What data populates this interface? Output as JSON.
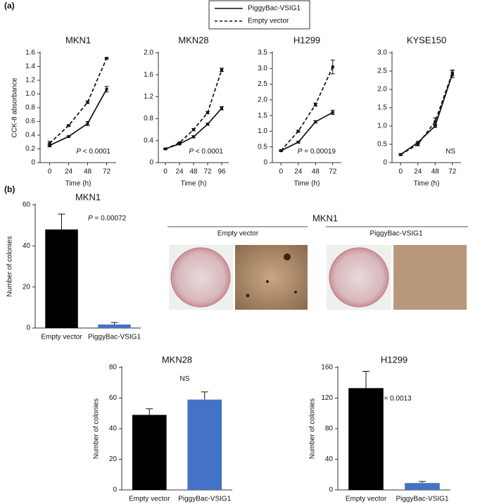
{
  "panel_labels": [
    "(a)",
    "(b)"
  ],
  "images_panel": {
    "title": "MKN1",
    "groups": [
      "Empty vector",
      "PiggyBac-VSIG1"
    ]
  },
  "chart_data": [
    {
      "type": "line",
      "title": "MKN1",
      "x_label": "Time (h)",
      "y_label": "CCK-8 absorbance",
      "x": [
        0,
        24,
        48,
        72
      ],
      "xlim": [
        -12,
        84
      ],
      "xticks": [
        0,
        24,
        48,
        72
      ],
      "ylim": [
        0,
        1.6
      ],
      "yticks": [
        0,
        0.2,
        0.4,
        0.6,
        0.8,
        {
          "value": 1,
          "label": "1.0"
        },
        1.2,
        1.4,
        1.6
      ],
      "series": [
        {
          "name": "PiggyBac-VSIG1",
          "color": "#111111",
          "style": "solid",
          "values": [
            0.25,
            0.38,
            0.57,
            1.07
          ],
          "errors": [
            0.02,
            0.01,
            0.03,
            0.04
          ]
        },
        {
          "name": "Empty vector",
          "color": "#111111",
          "style": "dashed",
          "values": [
            0.28,
            0.54,
            0.88,
            1.52
          ],
          "errors": [
            0.03,
            0.01,
            0.02,
            0.01
          ]
        }
      ],
      "annotation": {
        "italic": "P",
        "text": " < 0.0001"
      }
    },
    {
      "type": "line",
      "title": "MKN28",
      "x_label": "Time (h)",
      "x": [
        0,
        24,
        48,
        72,
        96
      ],
      "xlim": [
        -12,
        108
      ],
      "xticks": [
        0,
        24,
        48,
        72,
        96
      ],
      "ylim": [
        0,
        2
      ],
      "yticks": [
        0,
        0.4,
        0.8,
        1.2,
        1.6,
        {
          "value": 2,
          "label": "2.0"
        }
      ],
      "series": [
        {
          "color": "#111111",
          "style": "solid",
          "values": [
            0.25,
            0.34,
            0.47,
            0.7,
            0.99
          ],
          "errors": [
            0.01,
            0.01,
            0.02,
            0.02,
            0.03
          ]
        },
        {
          "color": "#111111",
          "style": "dashed",
          "values": [
            0.25,
            0.36,
            0.6,
            0.91,
            1.69
          ],
          "errors": [
            0.01,
            0.01,
            0.02,
            0.02,
            0.03
          ]
        }
      ],
      "annotation": {
        "italic": "P",
        "text": " < 0.0001"
      }
    },
    {
      "type": "line",
      "title": "H1299",
      "x_label": "Time (h)",
      "x": [
        0,
        24,
        48,
        72
      ],
      "xlim": [
        -12,
        84
      ],
      "xticks": [
        0,
        24,
        48,
        72
      ],
      "ylim": [
        0,
        3.5
      ],
      "yticks": [
        0,
        0.5,
        {
          "value": 1,
          "label": "1.0"
        },
        1.5,
        {
          "value": 2,
          "label": "2.0"
        },
        2.5,
        {
          "value": 3,
          "label": "3.0"
        },
        3.5
      ],
      "series": [
        {
          "color": "#111111",
          "style": "solid",
          "values": [
            0.38,
            0.65,
            1.3,
            1.6
          ],
          "errors": [
            0.02,
            0.03,
            0.04,
            0.07
          ]
        },
        {
          "color": "#111111",
          "style": "dashed",
          "values": [
            0.38,
            1.0,
            1.85,
            3.05
          ],
          "errors": [
            0.02,
            0.03,
            0.05,
            0.22
          ]
        }
      ],
      "annotation": {
        "italic": "P",
        "text": " = 0.00019"
      }
    },
    {
      "type": "line",
      "title": "KYSE150",
      "x_label": "Time (h)",
      "x": [
        0,
        24,
        48,
        72
      ],
      "xlim": [
        -12,
        84
      ],
      "xticks": [
        0,
        24,
        48,
        72
      ],
      "ylim": [
        0,
        3
      ],
      "yticks": [
        0,
        0.5,
        {
          "value": 1,
          "label": "1.0"
        },
        1.5,
        {
          "value": 2,
          "label": "2.0"
        },
        2.5,
        {
          "value": 3,
          "label": "3.0"
        }
      ],
      "series": [
        {
          "color": "#111111",
          "style": "solid",
          "values": [
            0.22,
            0.55,
            1.0,
            2.42
          ],
          "errors": [
            0.02,
            0.03,
            0.04,
            0.1
          ]
        },
        {
          "color": "#111111",
          "style": "dashed",
          "values": [
            0.22,
            0.5,
            1.12,
            2.45
          ],
          "errors": [
            0.02,
            0.04,
            0.1,
            0.08
          ]
        }
      ],
      "annotation": {
        "text": "NS"
      }
    },
    {
      "type": "bar",
      "title": "MKN1",
      "y_label": "Number of colonies",
      "categories": [
        "Empty vector",
        "PiggyBac-VSIG1"
      ],
      "values": [
        48,
        1.7
      ],
      "errors": [
        7.5,
        1
      ],
      "colors": [
        "#000000",
        "#4472c4"
      ],
      "ylim": [
        0,
        60
      ],
      "yticks": [
        0,
        20,
        40,
        60
      ],
      "annotation": {
        "italic": "P",
        "text": " = 0.00072"
      }
    },
    {
      "type": "bar",
      "title": "MKN28",
      "y_label": "Number of colonies",
      "categories": [
        "Empty vector",
        "PiggyBac-VSIG1"
      ],
      "values": [
        49,
        59
      ],
      "errors": [
        4,
        5
      ],
      "colors": [
        "#000000",
        "#4472c4"
      ],
      "ylim": [
        0,
        80
      ],
      "yticks": [
        0,
        20,
        40,
        60,
        80
      ],
      "annotation": {
        "text": "NS"
      }
    },
    {
      "type": "bar",
      "title": "H1299",
      "y_label": "Number of colonies",
      "categories": [
        "Empty vector",
        "PiggyBac-VSIG1"
      ],
      "values": [
        133,
        9
      ],
      "errors": [
        22,
        2
      ],
      "colors": [
        "#000000",
        "#4472c4"
      ],
      "ylim": [
        0,
        160
      ],
      "yticks": [
        0,
        40,
        80,
        120,
        160
      ],
      "annotation": {
        "italic": "P",
        "text": " = 0.0013"
      }
    }
  ]
}
